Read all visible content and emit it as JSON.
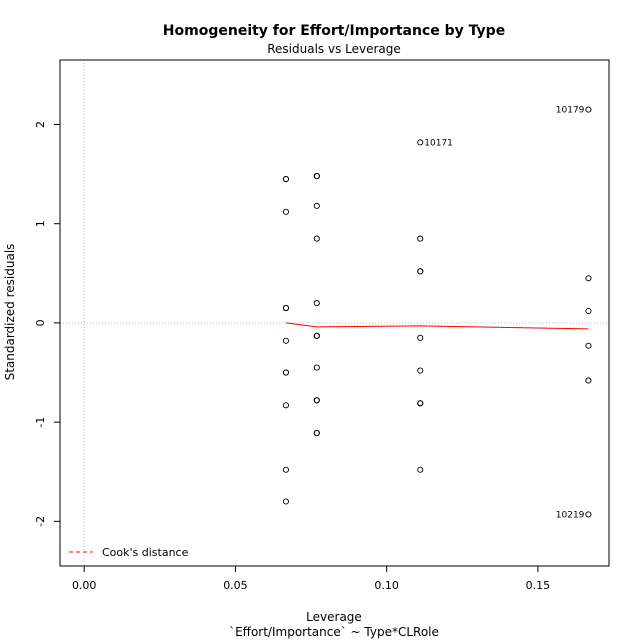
{
  "chart_data": {
    "type": "scatter",
    "title": "Homogeneity for Effort/Importance by Type",
    "subtitle": "Residuals vs Leverage",
    "xlabel": "Leverage",
    "xsublabel": "`Effort/Importance` ~ Type*CLRole",
    "ylabel": "Standardized residuals",
    "xlim": [
      -0.008,
      0.1735
    ],
    "ylim": [
      -2.45,
      2.65
    ],
    "xticks": [
      {
        "value": 0.0,
        "label": "0.00"
      },
      {
        "value": 0.05,
        "label": "0.05"
      },
      {
        "value": 0.1,
        "label": "0.10"
      },
      {
        "value": 0.15,
        "label": "0.15"
      }
    ],
    "yticks": [
      {
        "value": -2,
        "label": "-2"
      },
      {
        "value": -1,
        "label": "-1"
      },
      {
        "value": 0,
        "label": "0"
      },
      {
        "value": 1,
        "label": "1"
      },
      {
        "value": 2,
        "label": "2"
      }
    ],
    "grid": false,
    "points": [
      {
        "x": 0.0667,
        "y": 1.45
      },
      {
        "x": 0.0667,
        "y": 1.45
      },
      {
        "x": 0.0667,
        "y": 1.12
      },
      {
        "x": 0.0667,
        "y": 0.15
      },
      {
        "x": 0.0667,
        "y": 0.15
      },
      {
        "x": 0.0667,
        "y": -0.18
      },
      {
        "x": 0.0667,
        "y": -0.5
      },
      {
        "x": 0.0667,
        "y": -0.5
      },
      {
        "x": 0.0667,
        "y": -0.83
      },
      {
        "x": 0.0667,
        "y": -1.48
      },
      {
        "x": 0.0667,
        "y": -1.8
      },
      {
        "x": 0.0769,
        "y": 1.48
      },
      {
        "x": 0.0769,
        "y": 1.48
      },
      {
        "x": 0.0769,
        "y": 1.18
      },
      {
        "x": 0.0769,
        "y": 0.85
      },
      {
        "x": 0.0769,
        "y": 0.2
      },
      {
        "x": 0.0769,
        "y": -0.13
      },
      {
        "x": 0.0769,
        "y": -0.13
      },
      {
        "x": 0.0769,
        "y": -0.45
      },
      {
        "x": 0.0769,
        "y": -0.78
      },
      {
        "x": 0.0769,
        "y": -0.78
      },
      {
        "x": 0.0769,
        "y": -1.11
      },
      {
        "x": 0.0769,
        "y": -1.11
      },
      {
        "x": 0.1111,
        "y": 1.82,
        "label": "10171"
      },
      {
        "x": 0.1111,
        "y": 0.85
      },
      {
        "x": 0.1111,
        "y": 0.52
      },
      {
        "x": 0.1111,
        "y": 0.52
      },
      {
        "x": 0.1111,
        "y": -0.15
      },
      {
        "x": 0.1111,
        "y": -0.48
      },
      {
        "x": 0.1111,
        "y": -0.81
      },
      {
        "x": 0.1111,
        "y": -0.81
      },
      {
        "x": 0.1111,
        "y": -1.48
      },
      {
        "x": 0.1667,
        "y": 2.15,
        "label": "10179"
      },
      {
        "x": 0.1667,
        "y": 0.45
      },
      {
        "x": 0.1667,
        "y": 0.12
      },
      {
        "x": 0.1667,
        "y": -0.23
      },
      {
        "x": 0.1667,
        "y": -0.58
      },
      {
        "x": 0.1667,
        "y": -1.93,
        "label": "10219"
      }
    ],
    "smoother": {
      "color": "#ff0000",
      "x": [
        0.0667,
        0.0769,
        0.1111,
        0.1667
      ],
      "y": [
        0.0,
        -0.04,
        -0.03,
        -0.06
      ]
    },
    "reference_lines": {
      "h": 0,
      "v": 0,
      "style": "dotted",
      "color": "#bbbbbb"
    },
    "legend": {
      "position": "bottom-left",
      "entries": [
        {
          "label": "Cook's distance",
          "color": "#ff0000",
          "style": "dashed"
        }
      ]
    }
  }
}
